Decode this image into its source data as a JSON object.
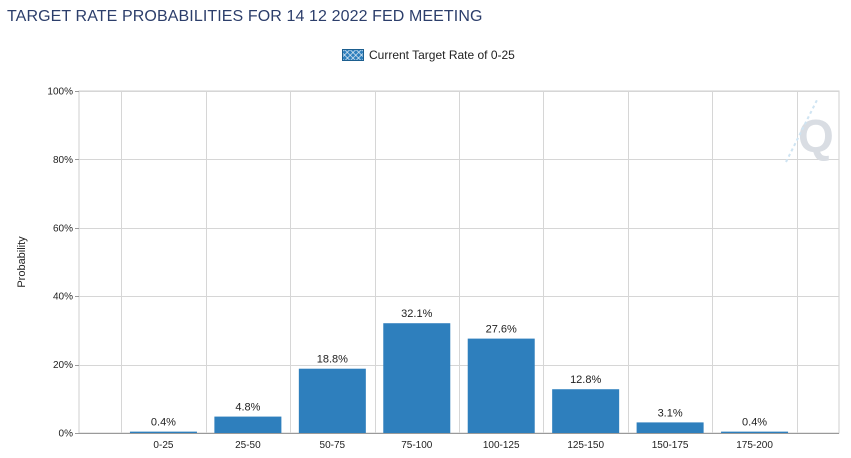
{
  "chart_data": {
    "type": "bar",
    "title": "TARGET RATE PROBABILITIES FOR 14 12 2022 FED MEETING",
    "ylabel": "Probability",
    "xlabel": "",
    "legend": {
      "label": "Current Target Rate of 0-25",
      "placement": "top-center"
    },
    "categories": [
      "0-25",
      "25-50",
      "50-75",
      "75-100",
      "100-125",
      "125-150",
      "150-175",
      "175-200"
    ],
    "values": [
      0.4,
      4.8,
      18.8,
      32.1,
      27.6,
      12.8,
      3.1,
      0.4
    ],
    "data_labels": [
      "0.4%",
      "4.8%",
      "18.8%",
      "32.1%",
      "27.6%",
      "12.8%",
      "3.1%",
      "0.4%"
    ],
    "ylim": [
      0,
      100
    ],
    "yticks": [
      0,
      20,
      40,
      60,
      80,
      100
    ],
    "ytick_labels": [
      "0%",
      "20%",
      "40%",
      "60%",
      "80%",
      "100%"
    ],
    "grid": true,
    "bar_color": "#2e7fbd"
  },
  "watermark": {
    "letter": "Q"
  }
}
